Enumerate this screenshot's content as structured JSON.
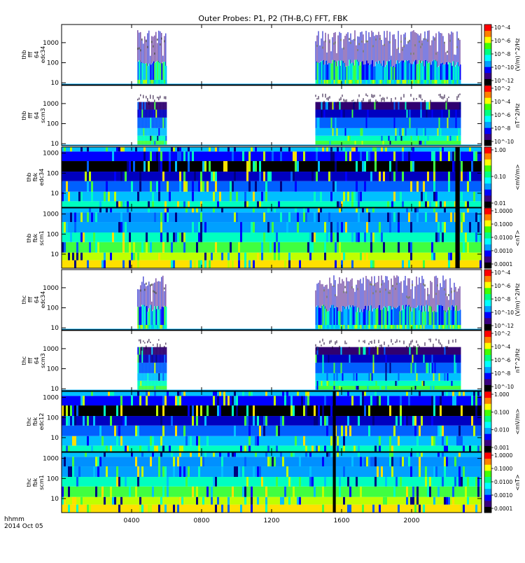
{
  "chart_data": {
    "type": "heatmap",
    "title": "Outer Probes: P1, P2 (TH-B,C) FFT, FBK",
    "x_ticks": [
      "0400",
      "0800",
      "1200",
      "1600",
      "2000"
    ],
    "x_range": [
      "0000",
      "2400"
    ],
    "x_label_lines": [
      "hhmm",
      "2014 Oct 05"
    ],
    "panels": [
      {
        "id": "thb-fft-edc34",
        "ylabel": [
          "thb",
          "fff",
          "64",
          "edc34"
        ],
        "y_ticks": [
          "1000",
          "100",
          "10"
        ],
        "y_range": [
          8,
          8000
        ],
        "colorbar_ticks": [
          "10^-4",
          "10^-6",
          "10^-8",
          "10^-10",
          "10^-12"
        ],
        "colorbar_label": "(V/m)^2/Hz",
        "style": "fft-e",
        "data_windows": [
          [
            "0420",
            "0600"
          ],
          [
            "1430",
            "2245"
          ]
        ]
      },
      {
        "id": "thb-fft-scm3",
        "ylabel": [
          "thb",
          "fff",
          "64",
          "scm3"
        ],
        "y_ticks": [
          "1000",
          "100",
          "10"
        ],
        "y_range": [
          8,
          8000
        ],
        "colorbar_ticks": [
          "10^-2",
          "10^-4",
          "10^-6",
          "10^-8",
          "10^-10"
        ],
        "colorbar_label": "nT^2/Hz",
        "style": "fft-b",
        "data_windows": [
          [
            "0420",
            "0600"
          ],
          [
            "1430",
            "2245"
          ]
        ]
      },
      {
        "id": "thb-fbk-edc34",
        "ylabel": [
          "thb",
          "fbk",
          "edc34"
        ],
        "y_ticks": [
          "1000",
          "100",
          "10"
        ],
        "y_range": [
          2,
          2000
        ],
        "colorbar_ticks": [
          "1.00",
          "0.10",
          "0.01"
        ],
        "colorbar_label": "<mV/m>",
        "style": "fbk-e",
        "gap": [
          "2230",
          "2245"
        ]
      },
      {
        "id": "thb-fbk-scm1",
        "ylabel": [
          "thb",
          "fbk",
          "scm1"
        ],
        "y_ticks": [
          "1000",
          "100",
          "10"
        ],
        "y_range": [
          2,
          2000
        ],
        "colorbar_ticks": [
          "1.0000",
          "0.1000",
          "0.0100",
          "0.0010",
          "0.0001"
        ],
        "colorbar_label": "<nT>",
        "style": "fbk-b",
        "gap": [
          "2230",
          "2245"
        ]
      },
      {
        "id": "thc-fft-edc34",
        "ylabel": [
          "thc",
          "fff",
          "64",
          "edc34"
        ],
        "y_ticks": [
          "1000",
          "100",
          "10"
        ],
        "y_range": [
          8,
          8000
        ],
        "colorbar_ticks": [
          "10^-4",
          "10^-6",
          "10^-8",
          "10^-10",
          "10^-12"
        ],
        "colorbar_label": "(V/m)^2/Hz",
        "style": "fft-e",
        "data_windows": [
          [
            "0420",
            "0600"
          ],
          [
            "1430",
            "2245"
          ]
        ]
      },
      {
        "id": "thc-fft-scm3",
        "ylabel": [
          "thc",
          "fff",
          "64",
          "scm3"
        ],
        "y_ticks": [
          "1000",
          "100",
          "10"
        ],
        "y_range": [
          8,
          8000
        ],
        "colorbar_ticks": [
          "10^-2",
          "10^-4",
          "10^-6",
          "10^-8",
          "10^-10"
        ],
        "colorbar_label": "nT^2/Hz",
        "style": "fft-b",
        "data_windows": [
          [
            "0420",
            "0600"
          ],
          [
            "1430",
            "2245"
          ]
        ]
      },
      {
        "id": "thc-fbk-edc12",
        "ylabel": [
          "thc",
          "fbk",
          "edc12"
        ],
        "y_ticks": [
          "1000",
          "100",
          "10"
        ],
        "y_range": [
          2,
          2000
        ],
        "colorbar_ticks": [
          "1.000",
          "0.100",
          "0.010",
          "0.001"
        ],
        "colorbar_label": "<mV/m>",
        "style": "fbk-e",
        "gap": [
          "1530",
          "1540"
        ]
      },
      {
        "id": "thc-fbk-scm1",
        "ylabel": [
          "thc",
          "fbk",
          "scm1"
        ],
        "y_ticks": [
          "1000",
          "100",
          "10"
        ],
        "y_range": [
          2,
          2000
        ],
        "colorbar_ticks": [
          "1.0000",
          "0.1000",
          "0.0100",
          "0.0010",
          "0.0001"
        ],
        "colorbar_label": "<nT>",
        "style": "fbk-b",
        "gap": [
          "1530",
          "1540"
        ]
      }
    ]
  }
}
